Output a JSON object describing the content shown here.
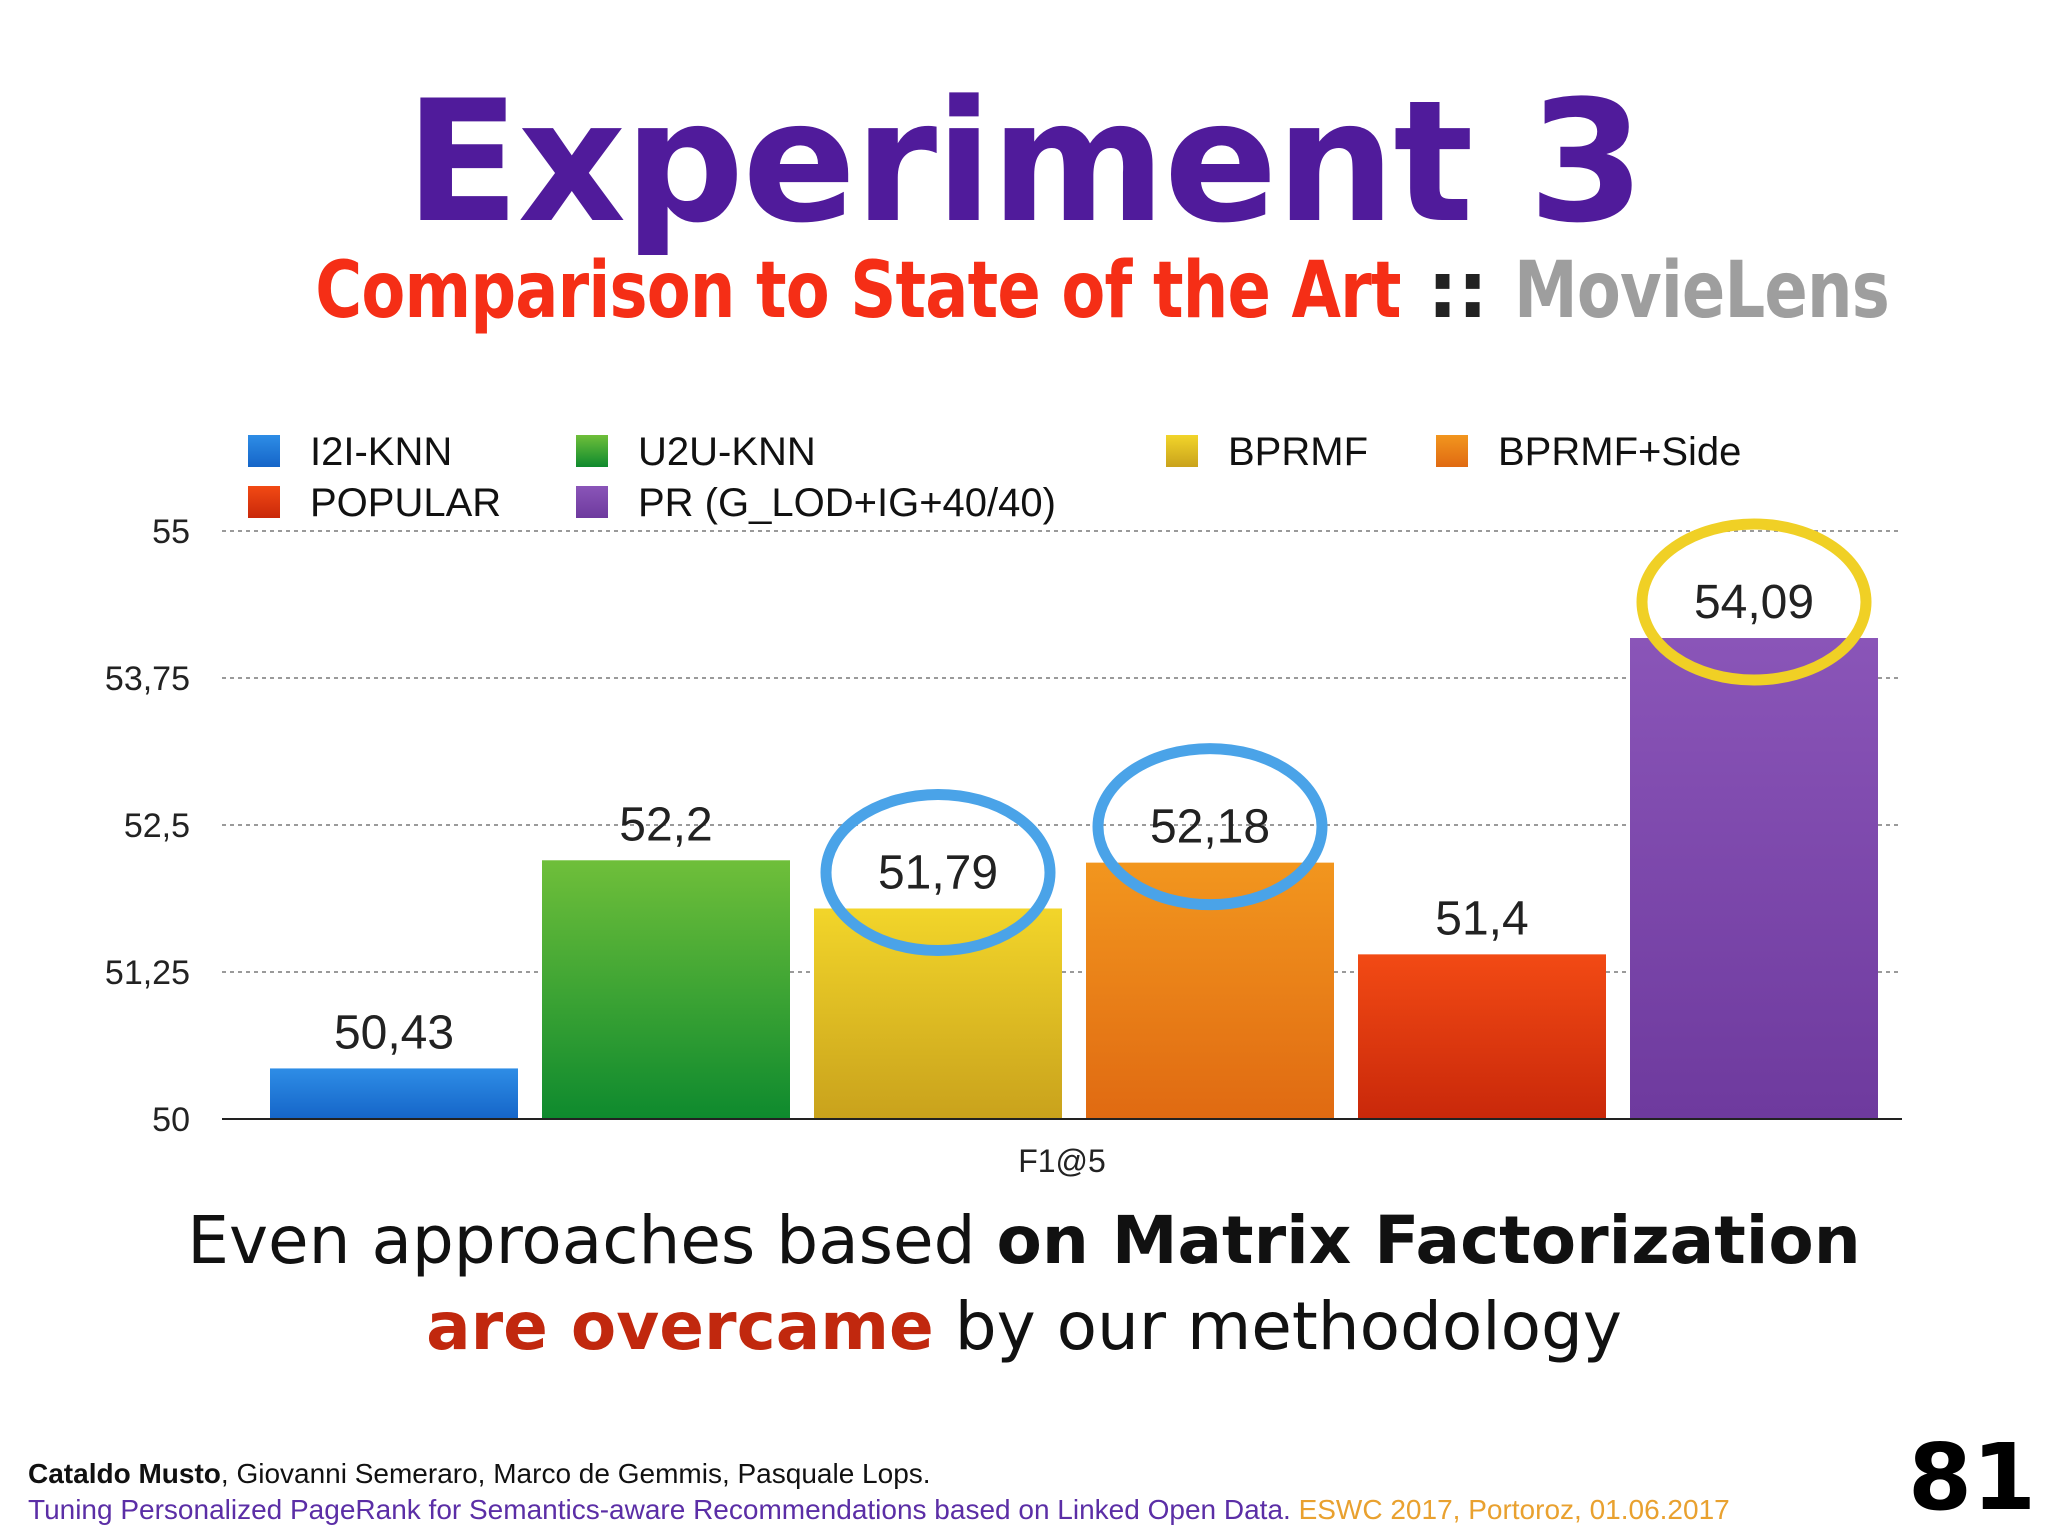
{
  "slide": {
    "title": "Experiment 3",
    "subtitle_main": "Comparison to State of the Art",
    "subtitle_sep": " :: ",
    "subtitle_dataset": "MovieLens",
    "caption_line1_normal": "Even approaches based ",
    "caption_line1_bold": "on Matrix Factorization",
    "caption_line2_bold": "are overcame",
    "caption_line2_normal": " by our methodology",
    "footer_author_bold": "Cataldo Musto",
    "footer_authors_rest": ", Giovanni Semeraro, Marco de Gemmis, Pasquale Lops.",
    "footer_paper": "Tuning Personalized PageRank for Semantics-aware Recommendations based on Linked Open Data.",
    "footer_venue": " ESWC 2017, Portoroz, 01.06.2017",
    "page_number": "81"
  },
  "chart_data": {
    "type": "bar",
    "categories": [
      "F1@5"
    ],
    "xlabel": "F1@5",
    "ylim": [
      50,
      55
    ],
    "yticks": [
      50,
      51.25,
      52.5,
      53.75,
      55
    ],
    "ytick_labels": [
      "50",
      "51,25",
      "52,5",
      "53,75",
      "55"
    ],
    "grid": true,
    "legend_position": "top",
    "series": [
      {
        "name": "I2I-KNN",
        "value": 50.43,
        "label": "50,43",
        "color": "#2E8DE6",
        "color_dark": "#1565C8"
      },
      {
        "name": "U2U-KNN",
        "value": 52.2,
        "label": "52,2",
        "color": "#6FBF3A",
        "color_dark": "#0E8A2E"
      },
      {
        "name": "BPRMF",
        "value": 51.79,
        "label": "51,79",
        "color": "#F2D52A",
        "color_dark": "#C9A21C"
      },
      {
        "name": "BPRMF+Side",
        "value": 52.18,
        "label": "52,18",
        "color": "#F2961E",
        "color_dark": "#E06A12"
      },
      {
        "name": "POPULAR",
        "value": 51.4,
        "label": "51,4",
        "color": "#F24A14",
        "color_dark": "#C9280A"
      },
      {
        "name": "PR (G_LOD+IG+40/40)",
        "value": 54.09,
        "label": "54,09",
        "color": "#8A55B8",
        "color_dark": "#6E3A9E"
      }
    ],
    "highlighted": [
      {
        "series": "BPRMF",
        "color": "#4AA3E8"
      },
      {
        "series": "BPRMF+Side",
        "color": "#4AA3E8"
      },
      {
        "series": "PR (G_LOD+IG+40/40)",
        "color": "#F0D025"
      }
    ]
  }
}
